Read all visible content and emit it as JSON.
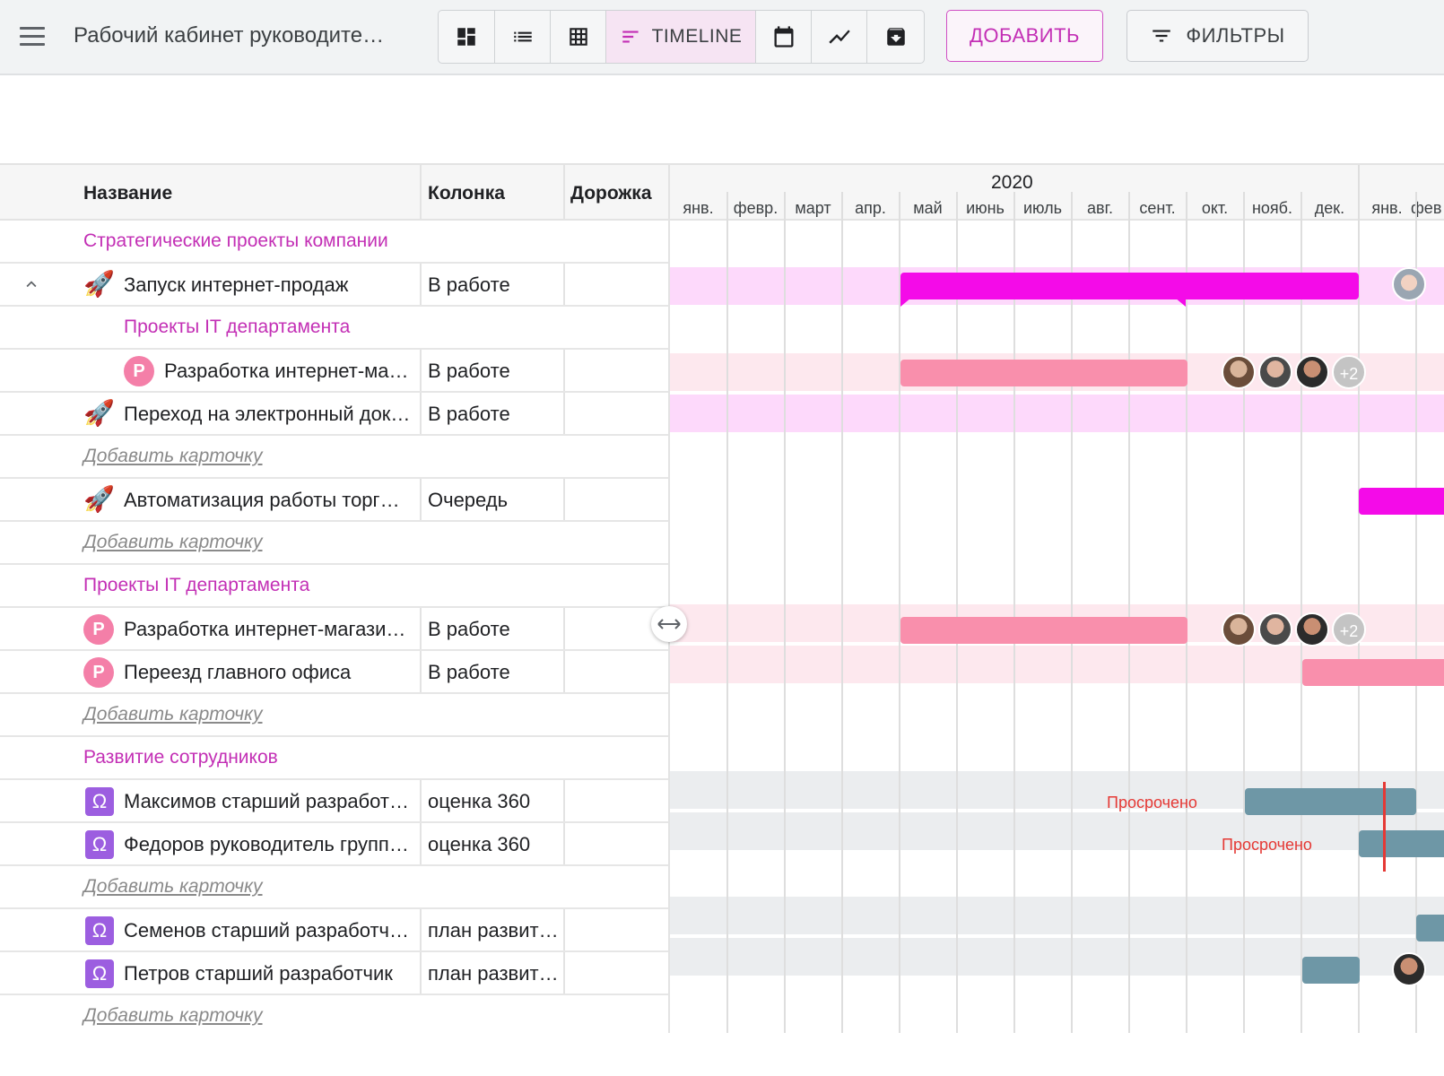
{
  "header": {
    "board_title": "Рабочий кабинет руководите…",
    "views": [
      "dashboard-view",
      "list-view",
      "table-view",
      "timeline-view",
      "calendar-view",
      "chart-view",
      "archive-view"
    ],
    "timeline_label": "TIMELINE",
    "add_label": "ДОБАВИТЬ",
    "filters_label": "ФИЛЬТРЫ",
    "accent_color": "#c32fb5"
  },
  "table": {
    "col_name": "Название",
    "col_column": "Колонка",
    "col_track": "Дорожка",
    "rows": [
      {
        "kind": "group",
        "text": "Стратегические проекты компании"
      },
      {
        "kind": "card",
        "icon": "rocket-icon",
        "name": "Запуск интернет-продаж",
        "column": "В работе",
        "expanded": true
      },
      {
        "kind": "group",
        "text": "Проекты IT департамента",
        "indent": true
      },
      {
        "kind": "card",
        "icon": "P",
        "name": "Разработка интернет-ма…",
        "column": "В работе",
        "indent": true
      },
      {
        "kind": "card",
        "icon": "rocket-icon",
        "name": "Переход на электронный док…",
        "column": "В работе"
      },
      {
        "kind": "add",
        "text": "Добавить карточку"
      },
      {
        "kind": "card",
        "icon": "rocket-icon",
        "name": "Автоматизация работы торг…",
        "column": "Очередь"
      },
      {
        "kind": "add",
        "text": "Добавить карточку"
      },
      {
        "kind": "group",
        "text": "Проекты IT департамента"
      },
      {
        "kind": "card",
        "icon": "P",
        "name": "Разработка интернет-магази…",
        "column": "В работе"
      },
      {
        "kind": "card",
        "icon": "P",
        "name": "Переезд главного офиса",
        "column": "В работе"
      },
      {
        "kind": "add",
        "text": "Добавить карточку"
      },
      {
        "kind": "group",
        "text": "Развитие сотрудников"
      },
      {
        "kind": "card",
        "icon": "omega-icon",
        "name": "Максимов старший разработ…",
        "column": "оценка 360"
      },
      {
        "kind": "card",
        "icon": "omega-icon",
        "name": "Федоров руководитель групп…",
        "column": "оценка 360"
      },
      {
        "kind": "add",
        "text": "Добавить карточку"
      },
      {
        "kind": "card",
        "icon": "omega-icon",
        "name": "Семенов старший разработч…",
        "column": "план развит…"
      },
      {
        "kind": "card",
        "icon": "omega-icon",
        "name": "Петров старший разработчик",
        "column": "план развит…"
      },
      {
        "kind": "add",
        "text": "Добавить карточку"
      }
    ]
  },
  "timeline": {
    "year": "2020",
    "months": [
      "янв.",
      "февр.",
      "март",
      "апр.",
      "май",
      "июнь",
      "июль",
      "авг.",
      "сент.",
      "окт.",
      "нояб.",
      "дек.",
      "янв.",
      "фев"
    ],
    "overdue_label": "Просрочено",
    "more_count": "+2",
    "colors": {
      "magenta": "#f40be8",
      "pink": "#f98fac",
      "slate": "#6e97a6",
      "band_magenta": "#fdd9fb",
      "band_pink": "#fde8ee",
      "band_grey": "#ebedef",
      "overdue": "#e53935"
    }
  }
}
